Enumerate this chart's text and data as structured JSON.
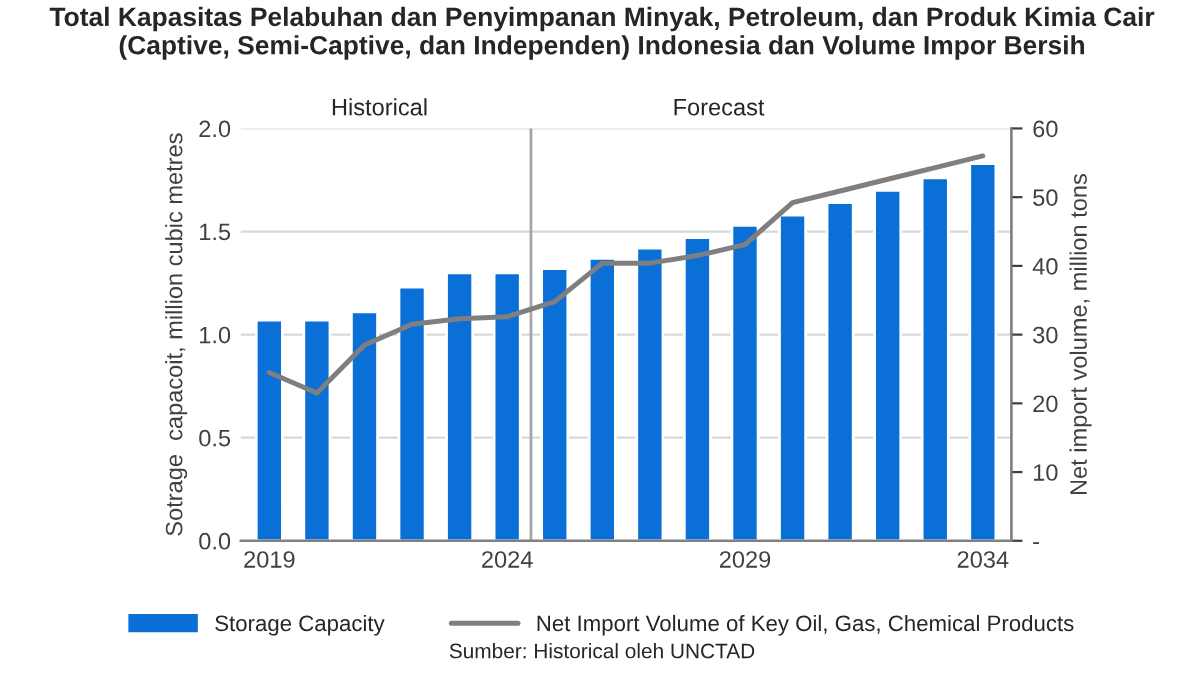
{
  "chart_data": {
    "type": "bar",
    "title": "Total Kapasitas Pelabuhan dan Penyimpanan Minyak, Petroleum, dan Produk Kimia Cair (Captive, Semi-Captive, dan Independen) Indonesia dan Volume Impor Bersih",
    "ylabel": "Sotrage  capacoit, million cubic metres",
    "y2label": "Net import volume, million tons",
    "x": [
      2019,
      2020,
      2021,
      2022,
      2023,
      2024,
      2025,
      2026,
      2027,
      2028,
      2029,
      2030,
      2031,
      2032,
      2033,
      2034
    ],
    "xlim": [
      2018.4,
      2034.6
    ],
    "xticks": [
      2019,
      2024,
      2029,
      2034
    ],
    "ylim": [
      0,
      2
    ],
    "yticks": [
      {
        "value": 0,
        "label": "0.0"
      },
      {
        "value": 0.5,
        "label": "0.5"
      },
      {
        "value": 1,
        "label": "1.0"
      },
      {
        "value": 1.5,
        "label": "1.5"
      },
      {
        "value": 2,
        "label": "2.0"
      }
    ],
    "y2lim": [
      0,
      60
    ],
    "y2ticks": [
      {
        "value": 0,
        "label": "-"
      },
      10,
      20,
      30,
      40,
      50,
      60
    ],
    "series": [
      {
        "name": "Storage Capacity",
        "color": "#0a6fd6",
        "values": [
          1.07,
          1.07,
          1.11,
          1.23,
          1.3,
          1.3,
          1.32,
          1.37,
          1.42,
          1.47,
          1.53,
          1.58,
          1.64,
          1.7,
          1.76,
          1.83
        ]
      },
      {
        "name": "Net Import Volume of Key Oil, Gas, Chemical Products",
        "type": "line",
        "axis": "y2",
        "color": "#7f7f7f",
        "values": [
          24.5,
          21.5,
          28.5,
          31.5,
          32.3,
          32.6,
          34.8,
          40.4,
          40.4,
          41.5,
          43.1,
          49.2,
          50.9,
          52.6,
          54.3,
          56.0
        ]
      }
    ],
    "ref_lines": [
      {
        "axis": "x",
        "value": 2024.5,
        "label": null,
        "color": "#a6a6a6"
      }
    ],
    "annotations": [
      "Historical",
      "Forecast",
      "Sumber: Historical oleh UNCTAD"
    ],
    "grid": "y",
    "legend": "bottom",
    "marker": "none",
    "line_style": "solid"
  }
}
